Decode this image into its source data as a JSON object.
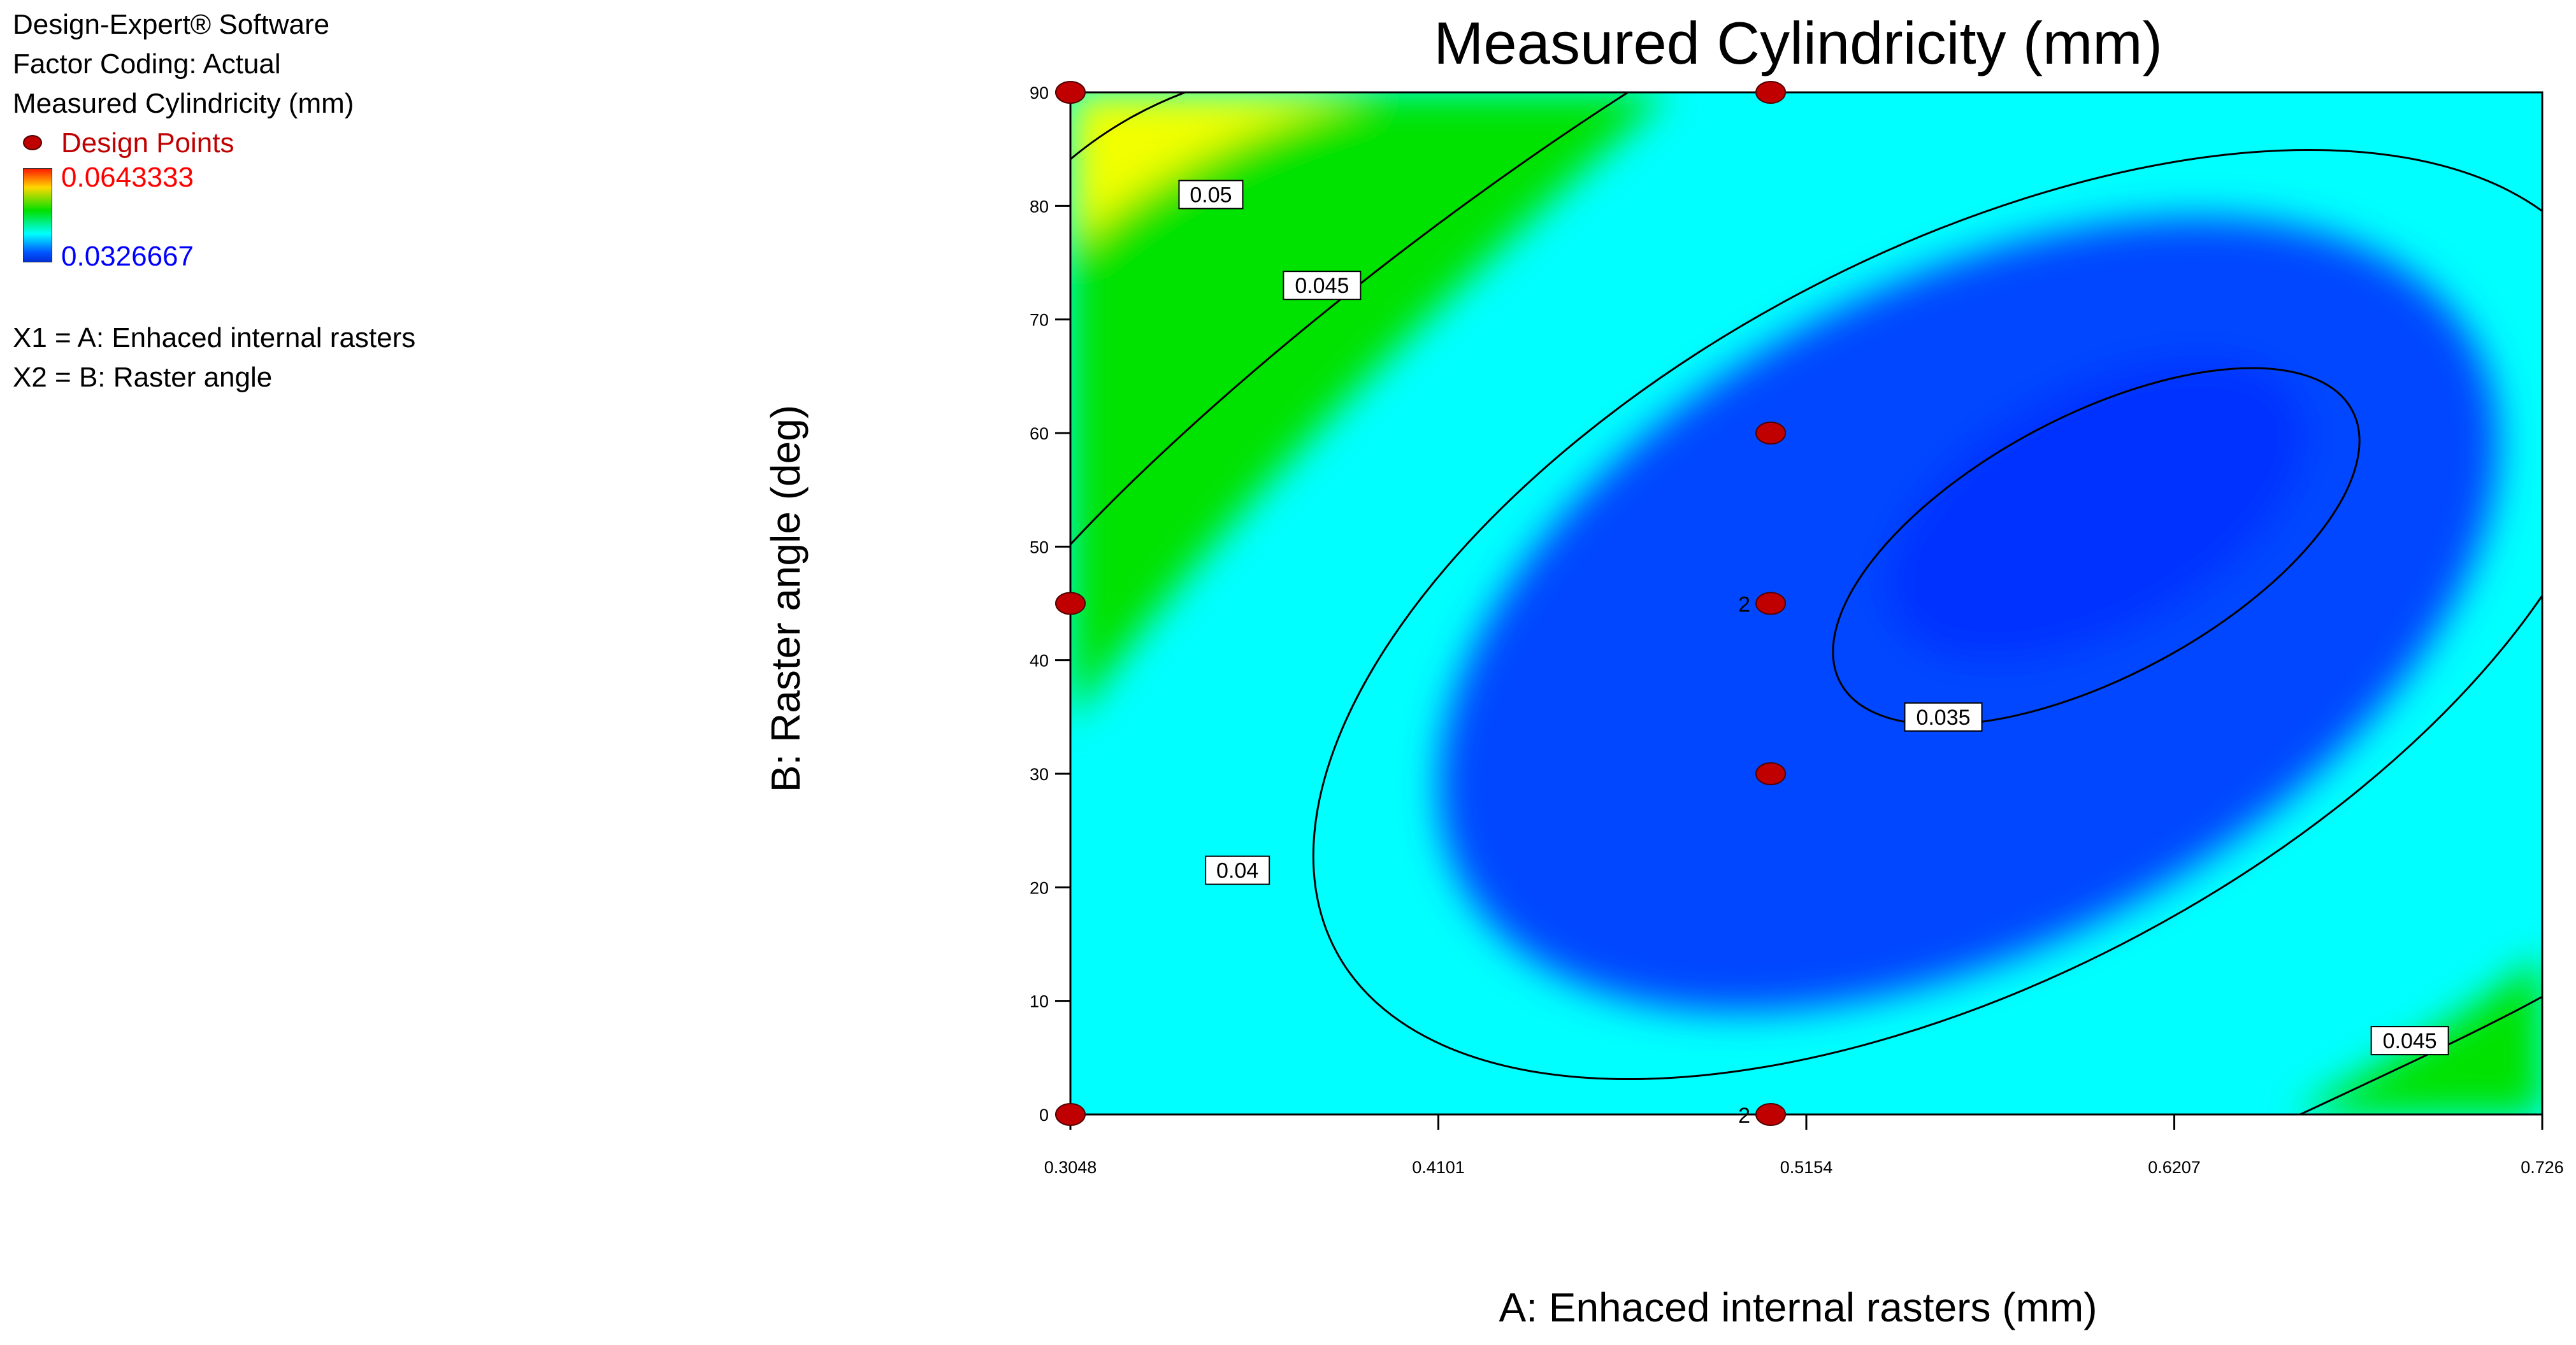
{
  "info": {
    "software": "Design-Expert® Software",
    "factor_coding": "Factor Coding: Actual",
    "response": "Measured Cylindricity (mm)",
    "design_points_label": "Design Points",
    "scale_max": "0.0643333",
    "scale_min": "0.0326667",
    "x1": "X1 = A: Enhaced internal rasters",
    "x2": "X2 = B: Raster angle"
  },
  "colors": {
    "yellow": "#f2ff00",
    "green": "#00e200",
    "cyan": "#00ffff",
    "blue": "#0046ff",
    "deep_blue": "#0030ff",
    "design_point": "#c00000",
    "scale_max_text": "#ff0000",
    "scale_min_text": "#0000ff"
  },
  "chart_data": {
    "type": "contour",
    "title": "Measured Cylindricity (mm)",
    "xlabel": "A: Enhaced internal rasters (mm)",
    "ylabel": "B: Raster angle (deg)",
    "xlim": [
      0.3048,
      0.726
    ],
    "ylim": [
      0,
      90
    ],
    "x_ticks": [
      "0.3048",
      "0.4101",
      "0.5154",
      "0.6207",
      "0.726"
    ],
    "y_ticks": [
      "0",
      "10",
      "20",
      "30",
      "40",
      "50",
      "60",
      "70",
      "80",
      "90"
    ],
    "contour_levels": [
      "0.035",
      "0.04",
      "0.045",
      "0.05"
    ],
    "contour_labels": [
      {
        "text": "0.05",
        "x": 0.345,
        "y": 81
      },
      {
        "text": "0.045",
        "x": 0.3768,
        "y": 73
      },
      {
        "text": "0.035",
        "x": 0.5546,
        "y": 35
      },
      {
        "text": "0.04",
        "x": 0.3526,
        "y": 21.5
      },
      {
        "text": "0.045",
        "x": 0.6881,
        "y": 6.5
      }
    ],
    "design_points": [
      {
        "x": 0.3048,
        "y": 90
      },
      {
        "x": 0.3048,
        "y": 45
      },
      {
        "x": 0.3048,
        "y": 0
      },
      {
        "x": 0.5052,
        "y": 90
      },
      {
        "x": 0.5052,
        "y": 60
      },
      {
        "x": 0.5052,
        "y": 45,
        "replicates": "2"
      },
      {
        "x": 0.5052,
        "y": 30
      },
      {
        "x": 0.5052,
        "y": 0,
        "replicates": "2"
      }
    ],
    "response_range": [
      0.0326667,
      0.0643333
    ]
  }
}
